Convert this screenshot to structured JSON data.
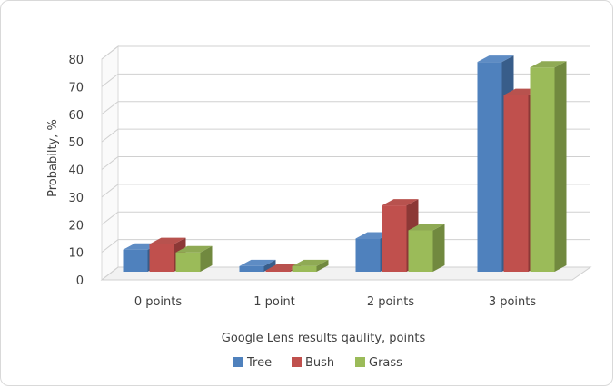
{
  "chart_data": {
    "type": "bar",
    "categories": [
      "0 points",
      "1 point",
      "2 points",
      "3 points"
    ],
    "series": [
      {
        "name": "Tree",
        "values": [
          8,
          2,
          12,
          76
        ],
        "color": "#4f81bd",
        "side_color": "#385d8a",
        "top_color": "#5e8cc4"
      },
      {
        "name": "Bush",
        "values": [
          10,
          0,
          24,
          64
        ],
        "color": "#c0504d",
        "side_color": "#8c3836",
        "top_color": "#b8524e"
      },
      {
        "name": "Grass",
        "values": [
          7,
          2,
          15,
          74
        ],
        "color": "#9bbb59",
        "side_color": "#71893f",
        "top_color": "#8faa54"
      }
    ],
    "xlabel": "Google Lens results qaulity, points",
    "ylabel": "Probabilty, %",
    "ylim": [
      0,
      80
    ],
    "yticks": [
      0,
      10,
      20,
      30,
      40,
      50,
      60,
      70,
      80
    ],
    "grid": true,
    "legend_position": "bottom"
  }
}
